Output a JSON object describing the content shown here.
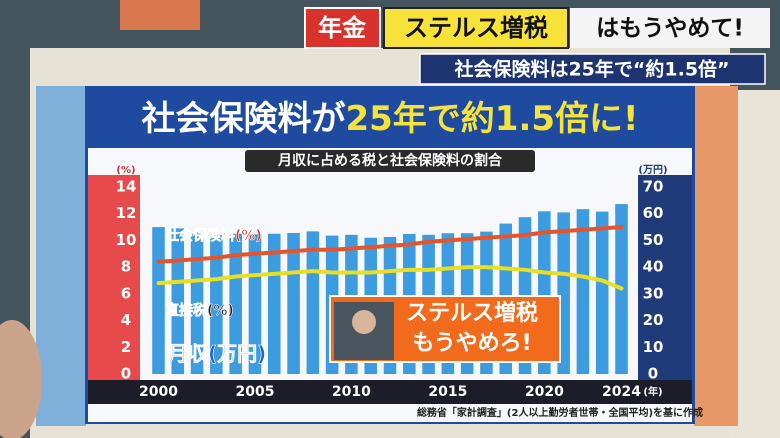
{
  "header": {
    "tag": "年金",
    "highlight": "ステルス増税",
    "rest": "はもうやめて!",
    "subheadline": "社会保険料は25年で“約1.5倍”"
  },
  "board": {
    "title": [
      "社会保険料が",
      "25年で約1.5倍に!"
    ],
    "callout": [
      "ステルス増税",
      "もうやめろ!"
    ],
    "source": "総務省「家計調査」(2人以上勤労者世帯・全国平均)を基に作成"
  },
  "chart_data": {
    "type": "bar",
    "subtitle": "月収に占める税と社会保険料の割合",
    "x": [
      2000,
      2001,
      2002,
      2003,
      2004,
      2005,
      2006,
      2007,
      2008,
      2009,
      2010,
      2011,
      2012,
      2013,
      2014,
      2015,
      2016,
      2017,
      2018,
      2019,
      2020,
      2021,
      2022,
      2023,
      2024
    ],
    "xlim": [
      1999.3,
      2024.7
    ],
    "xticks": [
      2000,
      2005,
      2010,
      2015,
      2020,
      2024
    ],
    "x_unit": "(年)",
    "ylim": [
      0,
      14
    ],
    "yticks": [
      0,
      2,
      4,
      6,
      8,
      10,
      12,
      14
    ],
    "y_unit": "(%)",
    "y2lim": [
      0,
      70
    ],
    "y2ticks": [
      0,
      10,
      20,
      30,
      40,
      50,
      60,
      70
    ],
    "y2_unit": "(万円)",
    "series": [
      {
        "name": "月収(万円)",
        "type": "bar",
        "axis": "y2",
        "color": "#3d9be0",
        "values": [
          55,
          54.5,
          53,
          52,
          52.5,
          52.3,
          52.5,
          52.8,
          53.4,
          51.8,
          52.1,
          51,
          51.3,
          52.4,
          52.1,
          52.7,
          52.7,
          53.3,
          56.3,
          58.7,
          60.9,
          60.5,
          61.7,
          60.8,
          63.6
        ]
      },
      {
        "name": "社会保険料(%)",
        "type": "line",
        "color": "#e8542a",
        "values": [
          8.4,
          8.5,
          8.6,
          8.7,
          8.9,
          9.0,
          9.1,
          9.2,
          9.3,
          9.3,
          9.4,
          9.5,
          9.6,
          9.7,
          9.9,
          10.0,
          10.1,
          10.2,
          10.3,
          10.4,
          10.6,
          10.7,
          10.8,
          10.9,
          11.0
        ]
      },
      {
        "name": "直接税(%)",
        "type": "line",
        "color": "#e8e020",
        "values": [
          6.8,
          6.9,
          7.0,
          7.1,
          7.3,
          7.4,
          7.5,
          7.6,
          7.7,
          7.6,
          7.6,
          7.6,
          7.7,
          7.8,
          7.8,
          7.9,
          8.0,
          8.0,
          7.9,
          7.8,
          7.6,
          7.5,
          7.3,
          7.0,
          6.4
        ]
      }
    ]
  }
}
